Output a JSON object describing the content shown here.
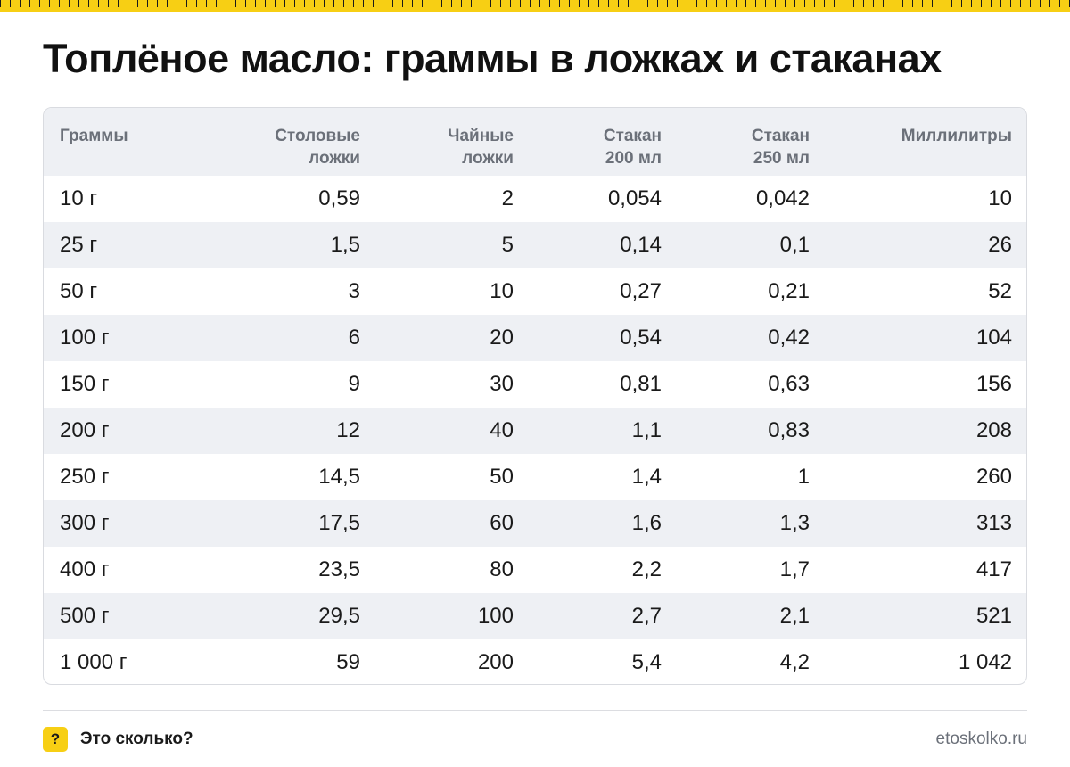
{
  "title": "Топлёное масло: граммы в ложках и стаканах",
  "table": {
    "headers": [
      [
        "Граммы",
        ""
      ],
      [
        "Столовые",
        "ложки"
      ],
      [
        "Чайные",
        "ложки"
      ],
      [
        "Стакан",
        "200 мл"
      ],
      [
        "Стакан",
        "250 мл"
      ],
      [
        "Миллилитры",
        ""
      ]
    ],
    "rows": [
      [
        "10 г",
        "0,59",
        "2",
        "0,054",
        "0,042",
        "10"
      ],
      [
        "25 г",
        "1,5",
        "5",
        "0,14",
        "0,1",
        "26"
      ],
      [
        "50 г",
        "3",
        "10",
        "0,27",
        "0,21",
        "52"
      ],
      [
        "100 г",
        "6",
        "20",
        "0,54",
        "0,42",
        "104"
      ],
      [
        "150 г",
        "9",
        "30",
        "0,81",
        "0,63",
        "156"
      ],
      [
        "200 г",
        "12",
        "40",
        "1,1",
        "0,83",
        "208"
      ],
      [
        "250 г",
        "14,5",
        "50",
        "1,4",
        "1",
        "260"
      ],
      [
        "300 г",
        "17,5",
        "60",
        "1,6",
        "1,3",
        "313"
      ],
      [
        "400 г",
        "23,5",
        "80",
        "2,2",
        "1,7",
        "417"
      ],
      [
        "500 г",
        "29,5",
        "100",
        "2,7",
        "2,1",
        "521"
      ],
      [
        "1 000 г",
        "59",
        "200",
        "5,4",
        "4,2",
        "1 042"
      ]
    ]
  },
  "footer": {
    "icon_glyph": "?",
    "icon_name": "question-mark-icon",
    "brand": "Это сколько?",
    "site": "etoskolko.ru"
  },
  "colors": {
    "accent": "#f7cf14",
    "header_bg": "#eef0f4",
    "muted_text": "#6b7079"
  }
}
